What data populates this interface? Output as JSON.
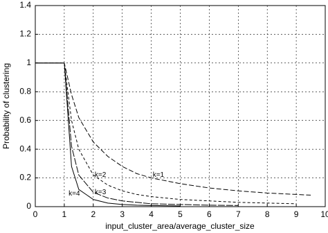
{
  "chart_data": {
    "type": "line",
    "xlabel": "input_cluster_area/average_cluster_size",
    "ylabel": "Probability of clustering",
    "x": [
      0,
      1,
      1.25,
      1.5,
      2,
      2.5,
      3,
      3.5,
      4,
      5,
      6,
      7,
      8,
      9,
      9.5
    ],
    "series": [
      {
        "name": "k=1",
        "color": "#000000",
        "dash": "7 3",
        "values": [
          1,
          1,
          0.78,
          0.62,
          0.45,
          0.35,
          0.28,
          0.23,
          0.2,
          0.16,
          0.13,
          0.11,
          0.095,
          0.085,
          0.08
        ]
      },
      {
        "name": "k=2",
        "color": "#000000",
        "dash": "4 3",
        "values": [
          1,
          1,
          0.6,
          0.4,
          0.22,
          0.15,
          0.11,
          0.085,
          0.07,
          0.05,
          0.04,
          0.03,
          0.025,
          0.02,
          null
        ]
      },
      {
        "name": "k=3",
        "color": "#000000",
        "dash": "10 2",
        "values": [
          1,
          1,
          0.42,
          0.22,
          0.1,
          0.06,
          0.04,
          0.03,
          0.02,
          0.015,
          0.01,
          0.008,
          null,
          null,
          null
        ]
      },
      {
        "name": "k=4",
        "color": "#000000",
        "dash": "none",
        "values": [
          1,
          1,
          0.28,
          0.12,
          0.05,
          0.025,
          0.015,
          0.01,
          0.008,
          0.005,
          null,
          null,
          null,
          null,
          null
        ]
      }
    ],
    "xlim": [
      0,
      10
    ],
    "xticks": [
      0,
      1,
      2,
      3,
      4,
      5,
      6,
      7,
      8,
      9,
      10
    ],
    "ylim": [
      0,
      1.4
    ],
    "yticks": [
      0,
      0.2,
      0.4,
      0.6,
      0.8,
      1,
      1.2,
      1.4
    ],
    "grid": true
  }
}
